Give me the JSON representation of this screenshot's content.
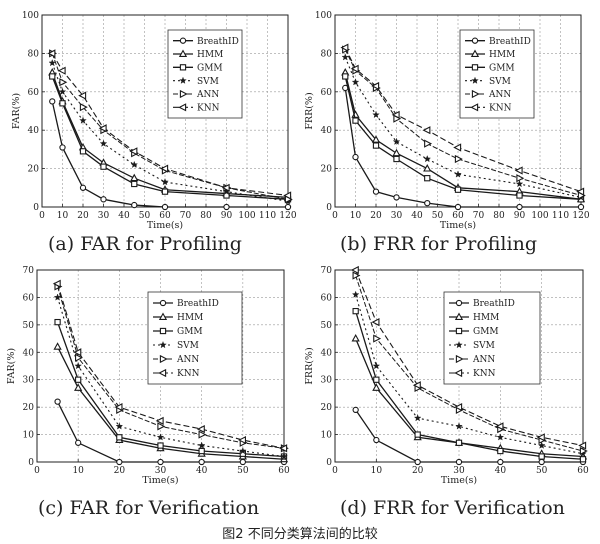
{
  "figure_caption": "图2 不同分类算法间的比较",
  "chart_data": [
    {
      "type": "line",
      "caption": "(a) FAR for Profiling",
      "xlabel": "Time(s)",
      "ylabel": "FAR(%)",
      "xlim": [
        0,
        120
      ],
      "ylim": [
        0,
        100
      ],
      "xticks": [
        0,
        10,
        20,
        30,
        40,
        50,
        60,
        70,
        80,
        90,
        100,
        110,
        120
      ],
      "yticks": [
        0,
        20,
        40,
        60,
        80,
        100
      ],
      "x": [
        5,
        10,
        20,
        30,
        45,
        60,
        90,
        120
      ],
      "legend": "top-right",
      "series": [
        {
          "name": "BreathID",
          "marker": "circle",
          "values": [
            55,
            31,
            10,
            4,
            1,
            0,
            0,
            0
          ]
        },
        {
          "name": "HMM",
          "marker": "triangle-up",
          "values": [
            70,
            55,
            31,
            23,
            15,
            9,
            7,
            5
          ]
        },
        {
          "name": "GMM",
          "marker": "square",
          "values": [
            68,
            54,
            29,
            21,
            12,
            8,
            6,
            4
          ]
        },
        {
          "name": "SVM",
          "marker": "star",
          "values": [
            75,
            60,
            45,
            33,
            22,
            13,
            8,
            3
          ]
        },
        {
          "name": "ANN",
          "marker": "triangle-right",
          "values": [
            80,
            65,
            52,
            40,
            28,
            19,
            10,
            4
          ]
        },
        {
          "name": "KNN",
          "marker": "triangle-left",
          "values": [
            80,
            71,
            58,
            41,
            29,
            20,
            10,
            6
          ]
        }
      ]
    },
    {
      "type": "line",
      "caption": "(b) FRR for Profiling",
      "xlabel": "Time(s)",
      "ylabel": "FRR(%)",
      "xlim": [
        0,
        120
      ],
      "ylim": [
        0,
        100
      ],
      "xticks": [
        0,
        10,
        20,
        30,
        40,
        50,
        60,
        70,
        80,
        90,
        100,
        110,
        120
      ],
      "yticks": [
        0,
        20,
        40,
        60,
        80,
        100
      ],
      "x": [
        5,
        10,
        20,
        30,
        45,
        60,
        90,
        120
      ],
      "legend": "top-right",
      "series": [
        {
          "name": "BreathID",
          "marker": "circle",
          "values": [
            62,
            26,
            8,
            5,
            2,
            0,
            0,
            0
          ]
        },
        {
          "name": "HMM",
          "marker": "triangle-up",
          "values": [
            70,
            48,
            35,
            28,
            20,
            10,
            8,
            4
          ]
        },
        {
          "name": "GMM",
          "marker": "square",
          "values": [
            68,
            45,
            32,
            25,
            15,
            9,
            6,
            4
          ]
        },
        {
          "name": "SVM",
          "marker": "star",
          "values": [
            78,
            65,
            48,
            34,
            25,
            17,
            12,
            5
          ]
        },
        {
          "name": "ANN",
          "marker": "triangle-right",
          "values": [
            82,
            71,
            62,
            46,
            33,
            25,
            15,
            6
          ]
        },
        {
          "name": "KNN",
          "marker": "triangle-left",
          "values": [
            83,
            72,
            63,
            48,
            40,
            31,
            19,
            8
          ]
        }
      ]
    },
    {
      "type": "line",
      "caption": "(c) FAR for Verification",
      "xlabel": "Time(s)",
      "ylabel": "FAR(%)",
      "xlim": [
        0,
        60
      ],
      "ylim": [
        0,
        70
      ],
      "xticks": [
        0,
        10,
        20,
        30,
        40,
        50,
        60
      ],
      "yticks": [
        0,
        10,
        20,
        30,
        40,
        50,
        60,
        70
      ],
      "x": [
        5,
        10,
        20,
        30,
        40,
        50,
        60
      ],
      "legend": "top-right",
      "series": [
        {
          "name": "BreathID",
          "marker": "circle",
          "values": [
            22,
            7,
            0,
            0,
            0,
            0,
            0
          ]
        },
        {
          "name": "HMM",
          "marker": "triangle-up",
          "values": [
            42,
            27,
            8,
            5,
            3,
            2,
            1
          ]
        },
        {
          "name": "GMM",
          "marker": "square",
          "values": [
            51,
            30,
            9,
            6,
            4,
            3,
            2
          ]
        },
        {
          "name": "SVM",
          "marker": "star",
          "values": [
            60,
            35,
            13,
            9,
            6,
            4,
            2
          ]
        },
        {
          "name": "ANN",
          "marker": "triangle-right",
          "values": [
            64,
            38,
            19,
            13,
            10,
            7,
            5
          ]
        },
        {
          "name": "KNN",
          "marker": "triangle-left",
          "values": [
            65,
            40,
            20,
            15,
            12,
            8,
            5
          ]
        }
      ]
    },
    {
      "type": "line",
      "caption": "(d) FRR for Verification",
      "xlabel": "Time(s)",
      "ylabel": "FRR(%)",
      "xlim": [
        0,
        60
      ],
      "ylim": [
        0,
        70
      ],
      "xticks": [
        0,
        10,
        20,
        30,
        40,
        50,
        60
      ],
      "yticks": [
        0,
        10,
        20,
        30,
        40,
        50,
        60,
        70
      ],
      "x": [
        5,
        10,
        20,
        30,
        40,
        50,
        60
      ],
      "legend": "top-right",
      "series": [
        {
          "name": "BreathID",
          "marker": "circle",
          "values": [
            19,
            8,
            0,
            0,
            0,
            0,
            0
          ]
        },
        {
          "name": "HMM",
          "marker": "triangle-up",
          "values": [
            45,
            27,
            9,
            7,
            5,
            3,
            2
          ]
        },
        {
          "name": "GMM",
          "marker": "square",
          "values": [
            55,
            30,
            10,
            7,
            4,
            2,
            1
          ]
        },
        {
          "name": "SVM",
          "marker": "star",
          "values": [
            61,
            35,
            16,
            13,
            9,
            6,
            3
          ]
        },
        {
          "name": "ANN",
          "marker": "triangle-right",
          "values": [
            68,
            45,
            27,
            19,
            12,
            8,
            4
          ]
        },
        {
          "name": "KNN",
          "marker": "triangle-left",
          "values": [
            70,
            51,
            28,
            20,
            13,
            9,
            6
          ]
        }
      ]
    }
  ]
}
